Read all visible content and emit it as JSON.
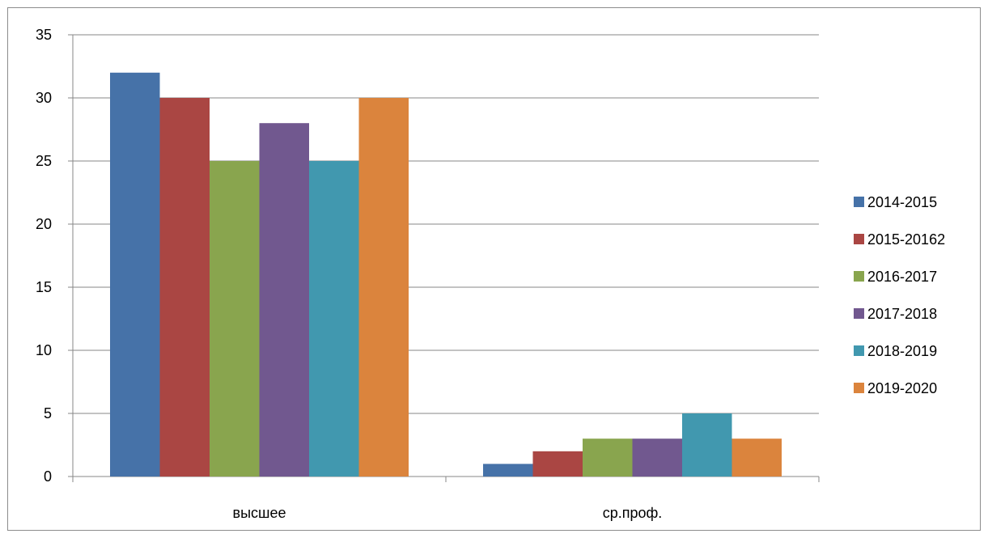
{
  "chart_data": {
    "type": "bar",
    "title": "",
    "xlabel": "",
    "ylabel": "",
    "categories": [
      "высшее",
      "ср.проф."
    ],
    "ylim": [
      0,
      35
    ],
    "yticks": [
      0,
      5,
      10,
      15,
      20,
      25,
      30,
      35
    ],
    "grid": true,
    "legend_position": "right",
    "series": [
      {
        "name": "2014-2015",
        "color": "#4672a8",
        "values": [
          32,
          1
        ]
      },
      {
        "name": "2015-20162",
        "color": "#aa4643",
        "values": [
          30,
          2
        ]
      },
      {
        "name": "2016-2017",
        "color": "#89a54e",
        "values": [
          25,
          3
        ]
      },
      {
        "name": "2017-2018",
        "color": "#71588f",
        "values": [
          28,
          3
        ]
      },
      {
        "name": "2018-2019",
        "color": "#4198af",
        "values": [
          25,
          5
        ]
      },
      {
        "name": "2019-2020",
        "color": "#db843d",
        "values": [
          30,
          3
        ]
      }
    ]
  }
}
